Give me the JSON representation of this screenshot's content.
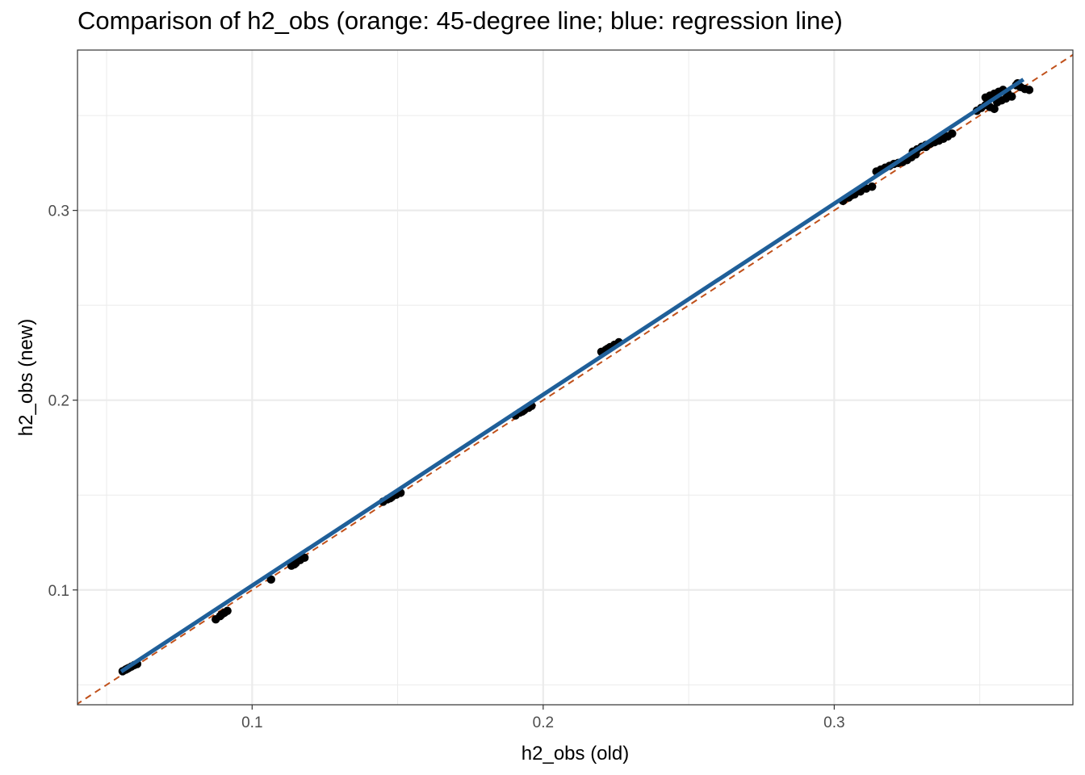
{
  "chart_data": {
    "type": "scatter",
    "title": "Comparison of h2_obs (orange: 45-degree line; blue: regression line)",
    "xlabel": "h2_obs (old)",
    "ylabel": "h2_obs (new)",
    "xlim": [
      0.04,
      0.382
    ],
    "ylim": [
      0.0395,
      0.3845
    ],
    "x_ticks": [
      "0.1",
      "0.2",
      "0.3"
    ],
    "y_ticks": [
      "0.1",
      "0.2",
      "0.3"
    ],
    "x_tick_values": [
      0.1,
      0.2,
      0.3
    ],
    "y_tick_values": [
      0.1,
      0.2,
      0.3
    ],
    "grid": true,
    "colors": {
      "points": "#000000",
      "identity_line": "#c0501a",
      "regression_line": "#1f5f99",
      "grid": "#ebebeb",
      "panel_border": "#333333"
    },
    "identity_line": {
      "slope": 1,
      "intercept": 0,
      "style": "dashed"
    },
    "regression_line": {
      "x": [
        0.055,
        0.365
      ],
      "y": [
        0.057,
        0.369
      ]
    },
    "points": [
      [
        0.0555,
        0.0572
      ],
      [
        0.0565,
        0.058
      ],
      [
        0.0575,
        0.0588
      ],
      [
        0.0585,
        0.0596
      ],
      [
        0.0595,
        0.0604
      ],
      [
        0.0605,
        0.061
      ],
      [
        0.057,
        0.0584
      ],
      [
        0.0875,
        0.0845
      ],
      [
        0.089,
        0.0862
      ],
      [
        0.0905,
        0.088
      ],
      [
        0.0915,
        0.089
      ],
      [
        0.0895,
        0.087
      ],
      [
        0.1065,
        0.1055
      ],
      [
        0.1135,
        0.1128
      ],
      [
        0.115,
        0.1142
      ],
      [
        0.1165,
        0.1158
      ],
      [
        0.118,
        0.117
      ],
      [
        0.1145,
        0.1135
      ],
      [
        0.145,
        0.1465
      ],
      [
        0.1465,
        0.1478
      ],
      [
        0.148,
        0.149
      ],
      [
        0.1495,
        0.1502
      ],
      [
        0.151,
        0.1512
      ],
      [
        0.1475,
        0.1484
      ],
      [
        0.1905,
        0.192
      ],
      [
        0.192,
        0.1935
      ],
      [
        0.1935,
        0.1948
      ],
      [
        0.195,
        0.196
      ],
      [
        0.196,
        0.197
      ],
      [
        0.1928,
        0.194
      ],
      [
        0.22,
        0.2255
      ],
      [
        0.2215,
        0.2265
      ],
      [
        0.223,
        0.228
      ],
      [
        0.2245,
        0.2292
      ],
      [
        0.226,
        0.2305
      ],
      [
        0.2222,
        0.2272
      ],
      [
        0.303,
        0.305
      ],
      [
        0.305,
        0.3068
      ],
      [
        0.307,
        0.3085
      ],
      [
        0.309,
        0.31
      ],
      [
        0.311,
        0.3115
      ],
      [
        0.313,
        0.3125
      ],
      [
        0.306,
        0.308
      ],
      [
        0.3145,
        0.3205
      ],
      [
        0.316,
        0.3215
      ],
      [
        0.3175,
        0.3225
      ],
      [
        0.319,
        0.3235
      ],
      [
        0.3205,
        0.3245
      ],
      [
        0.322,
        0.325
      ],
      [
        0.3235,
        0.3255
      ],
      [
        0.325,
        0.3265
      ],
      [
        0.3265,
        0.328
      ],
      [
        0.328,
        0.3295
      ],
      [
        0.327,
        0.331
      ],
      [
        0.3285,
        0.3322
      ],
      [
        0.33,
        0.3335
      ],
      [
        0.3315,
        0.3345
      ],
      [
        0.333,
        0.3352
      ],
      [
        0.3345,
        0.336
      ],
      [
        0.336,
        0.3368
      ],
      [
        0.3375,
        0.3378
      ],
      [
        0.339,
        0.339
      ],
      [
        0.3405,
        0.3405
      ],
      [
        0.338,
        0.3392
      ],
      [
        0.3315,
        0.3335
      ],
      [
        0.349,
        0.3525
      ],
      [
        0.3505,
        0.354
      ],
      [
        0.352,
        0.3555
      ],
      [
        0.3535,
        0.3545
      ],
      [
        0.355,
        0.3535
      ],
      [
        0.352,
        0.3595
      ],
      [
        0.3535,
        0.3605
      ],
      [
        0.355,
        0.3615
      ],
      [
        0.3565,
        0.3625
      ],
      [
        0.358,
        0.3635
      ],
      [
        0.3595,
        0.362
      ],
      [
        0.361,
        0.36
      ],
      [
        0.3625,
        0.366
      ],
      [
        0.364,
        0.365
      ],
      [
        0.3655,
        0.364
      ],
      [
        0.367,
        0.3635
      ],
      [
        0.363,
        0.367
      ],
      [
        0.356,
        0.357
      ],
      [
        0.3575,
        0.358
      ],
      [
        0.359,
        0.359
      ]
    ]
  }
}
